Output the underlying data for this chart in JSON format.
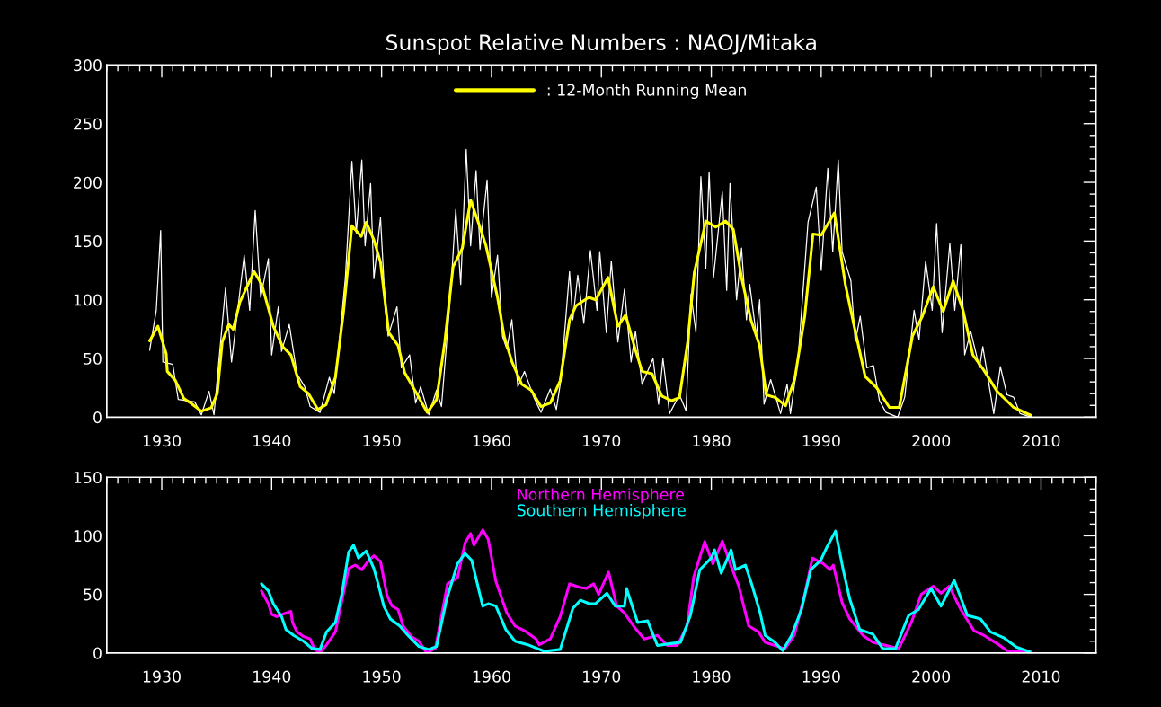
{
  "chart_data": [
    {
      "type": "line",
      "title": "Sunspot Relative Numbers : NAOJ/Mitaka",
      "xlim": [
        1925,
        2015
      ],
      "xticks": [
        1930,
        1940,
        1950,
        1960,
        1970,
        1980,
        1990,
        2000,
        2010
      ],
      "ylim": [
        0,
        300
      ],
      "yticks": [
        0,
        50,
        100,
        150,
        200,
        250,
        300
      ],
      "grid": false,
      "legend": "top",
      "marker": "none",
      "line_style": "solid",
      "series": [
        {
          "color": "#ffffff",
          "x": [
            1928.9,
            1929.5,
            1929.9,
            1930.1,
            1931,
            1931.5,
            1933,
            1933.6,
            1934.3,
            1934.75,
            1935.8,
            1936.35,
            1937.5,
            1938,
            1938.5,
            1939,
            1939.7,
            1940,
            1940.6,
            1940.9,
            1941.6,
            1942.3,
            1943,
            1943.5,
            1944.4,
            1945.25,
            1945.7,
            1946.7,
            1947.3,
            1947.7,
            1948.2,
            1948.5,
            1949,
            1949.3,
            1949.9,
            1950.35,
            1950.6,
            1951.4,
            1951.8,
            1952.55,
            1953.1,
            1953.55,
            1954.3,
            1955,
            1955.45,
            1956.3,
            1956.75,
            1957.2,
            1957.7,
            1958.1,
            1958.6,
            1958.95,
            1959.6,
            1960,
            1960.55,
            1961,
            1961.4,
            1961.85,
            1962.4,
            1963,
            1963.85,
            1964.5,
            1965.35,
            1965.9,
            1966.3,
            1967.1,
            1967.4,
            1967.85,
            1968.4,
            1969,
            1969.6,
            1969.85,
            1970.45,
            1970.9,
            1971.5,
            1972.1,
            1972.7,
            1973.1,
            1973.7,
            1974.7,
            1975.2,
            1975.6,
            1976.2,
            1977.1,
            1977.7,
            1978.15,
            1978.6,
            1979.05,
            1979.5,
            1979.8,
            1980.2,
            1981,
            1981.4,
            1981.7,
            1982.3,
            1982.75,
            1983.2,
            1983.5,
            1984.1,
            1984.4,
            1984.8,
            1985.4,
            1986.3,
            1986.9,
            1987.2,
            1987.9,
            1988.8,
            1989.55,
            1990,
            1990.6,
            1991.05,
            1991.55,
            1991.9,
            1992.7,
            1993.1,
            1993.55,
            1994.15,
            1994.75,
            1995.3,
            1995.9,
            1996.96,
            1997.6,
            1998.45,
            1998.9,
            1999.5,
            2000.1,
            2000.5,
            2001,
            2001.7,
            2002.15,
            2002.7,
            2003.05,
            2003.6,
            2004.4,
            2004.7,
            2005.7,
            2006.3,
            2006.9,
            2007.5,
            2008.1,
            2009.1
          ],
          "values": [
            57,
            91,
            159,
            47,
            45,
            15,
            13,
            2,
            22,
            2,
            110,
            47,
            138,
            91,
            176,
            102,
            135,
            53,
            94,
            56,
            79,
            37,
            26,
            9,
            4,
            34,
            20,
            118,
            218,
            157,
            219,
            146,
            199,
            118,
            170,
            91,
            69,
            94,
            42,
            53,
            12,
            26,
            2,
            23,
            9,
            108,
            177,
            113,
            228,
            146,
            210,
            143,
            202,
            102,
            138,
            69,
            58,
            83,
            26,
            39,
            17,
            4,
            24,
            6.5,
            31,
            124,
            83,
            121,
            80,
            142,
            91,
            141,
            72,
            133,
            64,
            109,
            47,
            73,
            28,
            50,
            11,
            50,
            3,
            19,
            5.5,
            105,
            72,
            205,
            127,
            209,
            119,
            192,
            108,
            199,
            100,
            144,
            83,
            113,
            69,
            100,
            11,
            32,
            3,
            28,
            3,
            50,
            166,
            196,
            125,
            212,
            141,
            219,
            141,
            116,
            64,
            86,
            42,
            44,
            14,
            4,
            0,
            17,
            91,
            66,
            133,
            91,
            165,
            72,
            148,
            91,
            147,
            53,
            73,
            42,
            60,
            3,
            43,
            19,
            17,
            3,
            0
          ]
        },
        {
          "name": ": 12-Month Running Mean",
          "color": "#ffff00",
          "x": [
            1928.9,
            1929.65,
            1930.4,
            1930.5,
            1931.25,
            1932,
            1932.7,
            1933.6,
            1934.5,
            1935.05,
            1935.5,
            1936.1,
            1936.5,
            1937.1,
            1937.5,
            1938.4,
            1939.1,
            1940.15,
            1941,
            1941.75,
            1942.6,
            1943.35,
            1944.2,
            1944.95,
            1945.8,
            1946.55,
            1947.3,
            1948.15,
            1948.6,
            1949.3,
            1949.9,
            1950.65,
            1951.5,
            1952.1,
            1953.1,
            1954.15,
            1955,
            1955.75,
            1956.5,
            1957.35,
            1958.1,
            1958.8,
            1959.5,
            1960.55,
            1961.15,
            1961.85,
            1962.75,
            1963.6,
            1964.5,
            1965.35,
            1966.25,
            1967.1,
            1967.7,
            1968.85,
            1969.5,
            1970.6,
            1971.5,
            1972.2,
            1973.1,
            1973.7,
            1974.6,
            1975.5,
            1976.4,
            1977.1,
            1977.85,
            1978.45,
            1979.5,
            1980.4,
            1981.3,
            1982,
            1982.75,
            1983.6,
            1984.4,
            1985,
            1985.85,
            1986.75,
            1987.6,
            1988.5,
            1989.25,
            1990,
            1991.2,
            1992.2,
            1993,
            1994,
            1995.05,
            1996.2,
            1997.1,
            1998.3,
            1999.2,
            2000.2,
            2001.1,
            2002,
            2002.9,
            2003.8,
            2004.8,
            2006,
            2007.5,
            2009.1
          ],
          "values": [
            65,
            77.5,
            54,
            39,
            31,
            16,
            11.5,
            5,
            8,
            20,
            64,
            79,
            75,
            98,
            106,
            124,
            113,
            77.5,
            60,
            53,
            26,
            20,
            6.5,
            10.6,
            34,
            91,
            163,
            154,
            166,
            151,
            132,
            72,
            61,
            38,
            21.6,
            4,
            15,
            64,
            128,
            144,
            185,
            166,
            146,
            102,
            69,
            47.5,
            28,
            23,
            9,
            12,
            31,
            83,
            95,
            102,
            100,
            119,
            77.5,
            87,
            57,
            39,
            37,
            18,
            14,
            16.6,
            64,
            123,
            167,
            162,
            167,
            160,
            119,
            83,
            61,
            19,
            16.6,
            9.7,
            33,
            86,
            156,
            155,
            174,
            113,
            77.5,
            34.6,
            25,
            8.3,
            8.3,
            69,
            86,
            111,
            90,
            116,
            91,
            53,
            40,
            22,
            8.3,
            1.4
          ]
        }
      ]
    },
    {
      "type": "line",
      "xlim": [
        1925,
        2015
      ],
      "xticks": [
        1930,
        1940,
        1950,
        1960,
        1970,
        1980,
        1990,
        2000,
        2010
      ],
      "ylim": [
        0,
        150
      ],
      "yticks": [
        0,
        50,
        100,
        150
      ],
      "grid": false,
      "legend": "top",
      "marker": "none",
      "line_style": "solid",
      "series": [
        {
          "name": "Northern Hemisphere",
          "color": "#ff00ff",
          "x": [
            1939.07,
            1939.7,
            1940,
            1940.45,
            1941,
            1941.75,
            1941.9,
            1942.3,
            1942.9,
            1943.5,
            1943.9,
            1944.4,
            1945,
            1945.8,
            1946.4,
            1947,
            1947.6,
            1948.2,
            1948.75,
            1949.3,
            1949.9,
            1950.5,
            1950.95,
            1951.5,
            1951.95,
            1952.7,
            1953.4,
            1954.1,
            1954.9,
            1956,
            1956.9,
            1957.6,
            1958.1,
            1958.4,
            1959.2,
            1959.7,
            1960.4,
            1961.4,
            1962.15,
            1963,
            1964.05,
            1964.35,
            1965.35,
            1966.25,
            1967.1,
            1968,
            1968.6,
            1969.3,
            1969.75,
            1970.65,
            1971.4,
            1972.1,
            1973,
            1973.9,
            1975.1,
            1976,
            1976.9,
            1977.8,
            1978.4,
            1979.4,
            1980.15,
            1981,
            1981.8,
            1982.5,
            1983.4,
            1984.3,
            1984.9,
            1985.8,
            1986.7,
            1987.55,
            1988.45,
            1989.2,
            1990.2,
            1990.8,
            1991.1,
            1991.9,
            1992.6,
            1993.8,
            1994.7,
            1995.9,
            1997.05,
            1998.2,
            1999.1,
            2000.2,
            2000.9,
            2001.65,
            2002.7,
            2003.9,
            2004.8,
            2006,
            2006.9,
            2009.1
          ],
          "values": [
            53,
            42,
            33,
            31,
            33,
            35.5,
            26,
            18,
            14,
            12,
            3,
            0.5,
            7,
            18,
            45,
            72,
            75,
            71,
            78,
            83,
            78,
            49,
            40,
            37,
            23,
            14,
            10,
            0,
            4,
            59,
            64,
            94,
            102,
            92,
            105,
            97,
            61,
            34,
            23,
            19,
            12,
            7,
            12,
            31,
            59,
            56,
            55,
            59,
            50,
            69,
            40,
            34,
            22,
            12,
            15,
            6.4,
            6.4,
            23,
            65,
            95,
            76,
            95.5,
            74,
            57,
            23,
            18,
            9,
            6.4,
            3.6,
            15,
            48,
            81,
            76,
            71,
            75,
            43,
            29,
            15,
            9,
            6.4,
            3.6,
            26,
            50,
            57,
            51,
            57,
            37,
            19,
            15,
            8,
            2,
            1
          ]
        },
        {
          "name": "Southern Hemisphere",
          "color": "#00ffff",
          "x": [
            1939.07,
            1939.7,
            1940.15,
            1940.9,
            1941.3,
            1942,
            1942.9,
            1943.65,
            1944.4,
            1945,
            1945.8,
            1946.4,
            1947,
            1947.45,
            1947.9,
            1948.6,
            1949.3,
            1949.8,
            1950.2,
            1950.8,
            1951.65,
            1952.4,
            1953.4,
            1954.3,
            1955,
            1955.9,
            1956.9,
            1957.6,
            1958.2,
            1959.2,
            1959.7,
            1960.4,
            1961.3,
            1962.15,
            1963.3,
            1964.8,
            1966.25,
            1967.4,
            1968.1,
            1968.9,
            1969.45,
            1970.5,
            1971.25,
            1972.1,
            1972.3,
            1972.7,
            1973.3,
            1974.2,
            1975.1,
            1976.3,
            1977.2,
            1978.1,
            1978.95,
            1980,
            1980.3,
            1980.9,
            1981.8,
            1982.2,
            1983.1,
            1983.7,
            1984.45,
            1984.9,
            1985.8,
            1986.5,
            1987.3,
            1988.2,
            1989.05,
            1989.95,
            1990.5,
            1991.3,
            1992,
            1992.6,
            1993.5,
            1994.7,
            1995.6,
            1996.75,
            1997.95,
            1998.85,
            2000,
            2000.9,
            2002.1,
            2003.3,
            2004.5,
            2005.4,
            2006.6,
            2007.75,
            2008.95
          ],
          "values": [
            59,
            53,
            42,
            31,
            20,
            15,
            10,
            4,
            3,
            18,
            26,
            51,
            86,
            92,
            81,
            87,
            72,
            55,
            40,
            29,
            23,
            15,
            5.5,
            3,
            5.5,
            45,
            76,
            85,
            79,
            40,
            42,
            40,
            20,
            10,
            7,
            1.4,
            3,
            38,
            45,
            42,
            42,
            51,
            40,
            40,
            55,
            43,
            26,
            27.5,
            6.4,
            8,
            9,
            32,
            71,
            81,
            88,
            68,
            88,
            71,
            75,
            58,
            34,
            15,
            9,
            2,
            15,
            37,
            71,
            79,
            90,
            104,
            71,
            46,
            20,
            16,
            3.6,
            3.6,
            32,
            37,
            55,
            40,
            62,
            32,
            29,
            18,
            13,
            5,
            1
          ]
        }
      ]
    }
  ]
}
